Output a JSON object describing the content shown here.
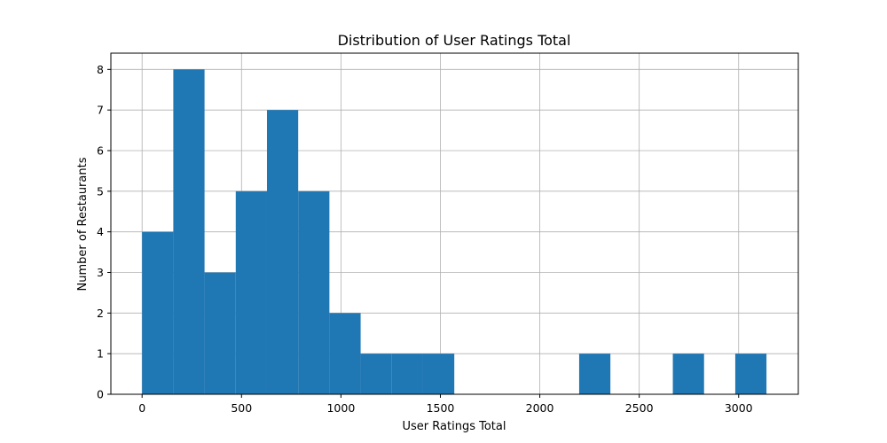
{
  "chart_data": {
    "type": "bar",
    "title": "Distribution of User Ratings Total",
    "xlabel": "User Ratings Total",
    "ylabel": "Number of Restaurants",
    "xlim": [
      -157,
      3300
    ],
    "ylim": [
      0,
      8.4
    ],
    "xticks": [
      0,
      500,
      1000,
      1500,
      2000,
      2500,
      3000
    ],
    "yticks": [
      0,
      1,
      2,
      3,
      4,
      5,
      6,
      7,
      8
    ],
    "grid": true,
    "bin_start": 0,
    "bin_width": 157,
    "bins": [
      {
        "start": 0,
        "end": 157,
        "count": 4
      },
      {
        "start": 157,
        "end": 314,
        "count": 8
      },
      {
        "start": 314,
        "end": 471,
        "count": 3
      },
      {
        "start": 471,
        "end": 628,
        "count": 5
      },
      {
        "start": 628,
        "end": 785,
        "count": 7
      },
      {
        "start": 785,
        "end": 942,
        "count": 5
      },
      {
        "start": 942,
        "end": 1099,
        "count": 2
      },
      {
        "start": 1099,
        "end": 1256,
        "count": 1
      },
      {
        "start": 1256,
        "end": 1413,
        "count": 1
      },
      {
        "start": 1413,
        "end": 1570,
        "count": 1
      },
      {
        "start": 1570,
        "end": 1727,
        "count": 0
      },
      {
        "start": 1727,
        "end": 1884,
        "count": 0
      },
      {
        "start": 1884,
        "end": 2041,
        "count": 0
      },
      {
        "start": 2041,
        "end": 2198,
        "count": 0
      },
      {
        "start": 2198,
        "end": 2355,
        "count": 1
      },
      {
        "start": 2355,
        "end": 2512,
        "count": 0
      },
      {
        "start": 2512,
        "end": 2669,
        "count": 0
      },
      {
        "start": 2669,
        "end": 2826,
        "count": 1
      },
      {
        "start": 2826,
        "end": 2983,
        "count": 0
      },
      {
        "start": 2983,
        "end": 3140,
        "count": 1
      }
    ],
    "bar_color": "#1f77b4",
    "grid_color": "#b0b0b0"
  }
}
